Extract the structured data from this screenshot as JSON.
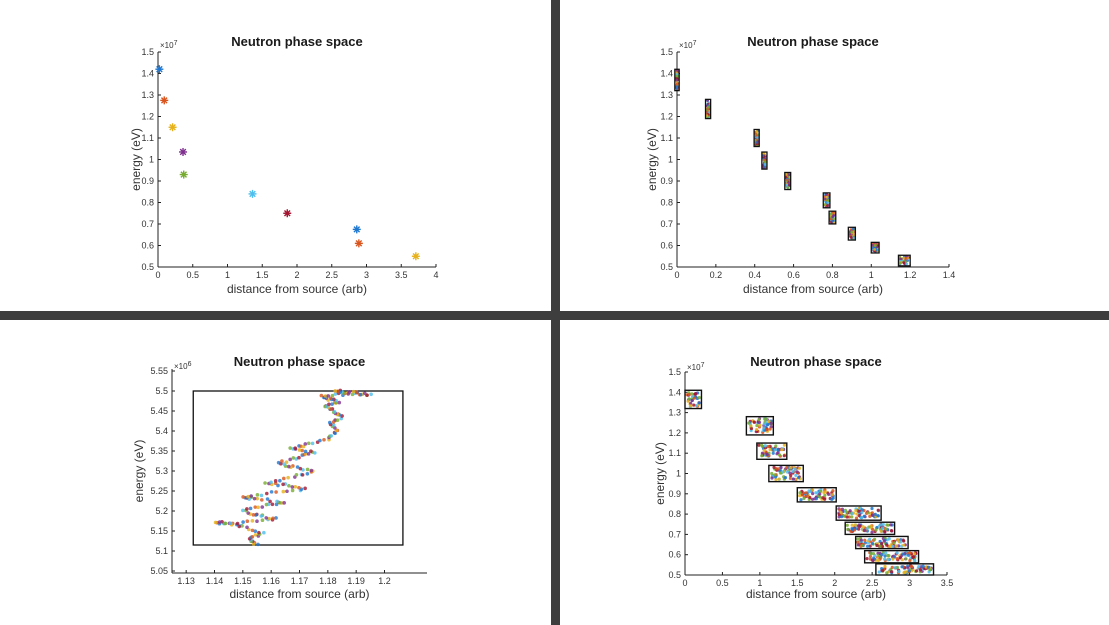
{
  "chart_data": [
    {
      "type": "scatter",
      "title": "Neutron phase space",
      "xlabel": "distance from source (arb)",
      "ylabel": "energy (eV)",
      "y_multiplier": "×10",
      "y_multiplier_exp": "7",
      "xlim": [
        0,
        4
      ],
      "ylim": [
        0.5,
        1.5
      ],
      "xticks": [
        "0",
        "0.5",
        "1",
        "1.5",
        "2",
        "2.5",
        "3",
        "3.5",
        "4"
      ],
      "yticks": [
        "0.5",
        "0.6",
        "0.7",
        "0.8",
        "0.9",
        "1",
        "1.1",
        "1.2",
        "1.3",
        "1.4",
        "1.5"
      ],
      "marker": "asterisk",
      "points": [
        {
          "x": 0.02,
          "y": 1.42,
          "color": "#1f77d0"
        },
        {
          "x": 0.09,
          "y": 1.275,
          "color": "#d9541d"
        },
        {
          "x": 0.21,
          "y": 1.15,
          "color": "#e6b21c"
        },
        {
          "x": 0.36,
          "y": 1.035,
          "color": "#7e2f8e"
        },
        {
          "x": 0.37,
          "y": 0.93,
          "color": "#77ac30"
        },
        {
          "x": 1.36,
          "y": 0.84,
          "color": "#4dbeee"
        },
        {
          "x": 1.86,
          "y": 0.75,
          "color": "#a2142f"
        },
        {
          "x": 2.86,
          "y": 0.675,
          "color": "#1f77d0"
        },
        {
          "x": 2.89,
          "y": 0.61,
          "color": "#d9541d"
        },
        {
          "x": 3.71,
          "y": 0.55,
          "color": "#e6b21c"
        }
      ]
    },
    {
      "type": "scatter",
      "title": "Neutron phase space",
      "xlabel": "distance from source (arb)",
      "ylabel": "energy (eV)",
      "y_multiplier": "×10",
      "y_multiplier_exp": "7",
      "xlim": [
        0,
        1.4
      ],
      "ylim": [
        0.5,
        1.5
      ],
      "xticks": [
        "0",
        "0.2",
        "0.4",
        "0.6",
        "0.8",
        "1",
        "1.2",
        "1.4"
      ],
      "yticks": [
        "0.5",
        "0.6",
        "0.7",
        "0.8",
        "0.9",
        "1",
        "1.1",
        "1.2",
        "1.3",
        "1.4",
        "1.5"
      ],
      "clusters": [
        {
          "x": 0.0,
          "y": 1.37,
          "w": 0.012,
          "h": 0.09
        },
        {
          "x": 0.16,
          "y": 1.235,
          "w": 0.016,
          "h": 0.08
        },
        {
          "x": 0.41,
          "y": 1.1,
          "w": 0.016,
          "h": 0.07
        },
        {
          "x": 0.45,
          "y": 0.995,
          "w": 0.016,
          "h": 0.07
        },
        {
          "x": 0.57,
          "y": 0.9,
          "w": 0.02,
          "h": 0.07
        },
        {
          "x": 0.77,
          "y": 0.81,
          "w": 0.024,
          "h": 0.06
        },
        {
          "x": 0.8,
          "y": 0.73,
          "w": 0.024,
          "h": 0.05
        },
        {
          "x": 0.9,
          "y": 0.655,
          "w": 0.026,
          "h": 0.05
        },
        {
          "x": 1.02,
          "y": 0.59,
          "w": 0.03,
          "h": 0.04
        },
        {
          "x": 1.17,
          "y": 0.53,
          "w": 0.05,
          "h": 0.04
        }
      ]
    },
    {
      "type": "scatter",
      "title": "Neutron phase space",
      "xlabel": "distance from source (arb)",
      "ylabel": "energy (eV)",
      "y_multiplier": "×10",
      "y_multiplier_exp": "6",
      "xlim": [
        1.125,
        1.215
      ],
      "ylim": [
        5.045,
        5.555
      ],
      "xticks": [
        "1.13",
        "1.14",
        "1.15",
        "1.16",
        "1.17",
        "1.18",
        "1.19",
        "1.2"
      ],
      "xtick_values": [
        1.13,
        1.14,
        1.15,
        1.16,
        1.17,
        1.18,
        1.19,
        1.2
      ],
      "yticks": [
        "5.05",
        "5.1",
        "5.15",
        "5.2",
        "5.25",
        "5.3",
        "5.35",
        "5.4",
        "5.45",
        "5.5",
        "5.55"
      ],
      "ytick_values": [
        5.05,
        5.1,
        5.15,
        5.2,
        5.25,
        5.3,
        5.35,
        5.4,
        5.45,
        5.5,
        5.55
      ],
      "box": {
        "x0": 1.1325,
        "x1": 1.2065,
        "y0": 5.115,
        "y1": 5.5
      },
      "path": [
        [
          1.155,
          5.115
        ],
        [
          1.152,
          5.13
        ],
        [
          1.157,
          5.145
        ],
        [
          1.15,
          5.16
        ],
        [
          1.145,
          5.17
        ],
        [
          1.14,
          5.17
        ],
        [
          1.152,
          5.172
        ],
        [
          1.162,
          5.18
        ],
        [
          1.155,
          5.19
        ],
        [
          1.15,
          5.2
        ],
        [
          1.158,
          5.215
        ],
        [
          1.165,
          5.222
        ],
        [
          1.155,
          5.23
        ],
        [
          1.15,
          5.235
        ],
        [
          1.16,
          5.245
        ],
        [
          1.172,
          5.255
        ],
        [
          1.165,
          5.265
        ],
        [
          1.158,
          5.27
        ],
        [
          1.168,
          5.285
        ],
        [
          1.175,
          5.3
        ],
        [
          1.168,
          5.31
        ],
        [
          1.163,
          5.32
        ],
        [
          1.17,
          5.335
        ],
        [
          1.175,
          5.348
        ],
        [
          1.167,
          5.355
        ],
        [
          1.172,
          5.365
        ],
        [
          1.18,
          5.38
        ],
        [
          1.183,
          5.4
        ],
        [
          1.181,
          5.42
        ],
        [
          1.185,
          5.435
        ],
        [
          1.182,
          5.45
        ],
        [
          1.179,
          5.462
        ],
        [
          1.184,
          5.472
        ],
        [
          1.18,
          5.48
        ],
        [
          1.178,
          5.488
        ],
        [
          1.185,
          5.492
        ],
        [
          1.19,
          5.494
        ],
        [
          1.195,
          5.49
        ],
        [
          1.186,
          5.498
        ],
        [
          1.182,
          5.5
        ]
      ]
    },
    {
      "type": "scatter",
      "title": "Neutron phase space",
      "xlabel": "distance from source (arb)",
      "ylabel": "energy (eV)",
      "y_multiplier": "×10",
      "y_multiplier_exp": "7",
      "xlim": [
        0,
        3.5
      ],
      "ylim": [
        0.5,
        1.5
      ],
      "xticks": [
        "0",
        "0.5",
        "1",
        "1.5",
        "2",
        "2.5",
        "3",
        "3.5"
      ],
      "yticks": [
        "0.5",
        "0.6",
        "0.7",
        "0.8",
        "0.9",
        "1",
        "1.1",
        "1.2",
        "1.3",
        "1.4",
        "1.5"
      ],
      "boxes": [
        {
          "x0": 0.0,
          "x1": 0.22,
          "y0": 1.32,
          "y1": 1.41
        },
        {
          "x0": 0.82,
          "x1": 1.18,
          "y0": 1.19,
          "y1": 1.28
        },
        {
          "x0": 0.96,
          "x1": 1.36,
          "y0": 1.07,
          "y1": 1.15
        },
        {
          "x0": 1.12,
          "x1": 1.58,
          "y0": 0.96,
          "y1": 1.04
        },
        {
          "x0": 1.5,
          "x1": 2.02,
          "y0": 0.86,
          "y1": 0.93
        },
        {
          "x0": 2.02,
          "x1": 2.62,
          "y0": 0.77,
          "y1": 0.84
        },
        {
          "x0": 2.14,
          "x1": 2.8,
          "y0": 0.7,
          "y1": 0.76
        },
        {
          "x0": 2.28,
          "x1": 2.98,
          "y0": 0.63,
          "y1": 0.69
        },
        {
          "x0": 2.4,
          "x1": 3.12,
          "y0": 0.56,
          "y1": 0.62
        },
        {
          "x0": 2.55,
          "x1": 3.32,
          "y0": 0.5,
          "y1": 0.555
        }
      ]
    }
  ]
}
